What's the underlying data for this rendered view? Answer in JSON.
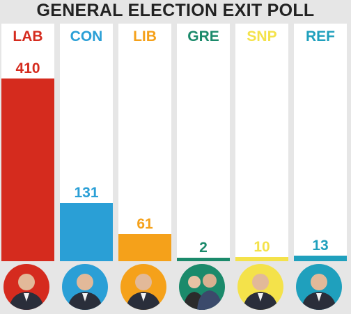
{
  "title": "GENERAL ELECTION EXIT POLL",
  "chart_data": {
    "type": "bar",
    "title": "GENERAL ELECTION EXIT POLL",
    "categories": [
      "LAB",
      "CON",
      "LIB",
      "GRE",
      "SNP",
      "REF"
    ],
    "values": [
      410,
      131,
      61,
      2,
      10,
      13
    ],
    "colors": [
      "#d52b1e",
      "#2a9fd6",
      "#f5a11a",
      "#1b8a6b",
      "#f4e24a",
      "#1fa0bd"
    ],
    "ylim": [
      0,
      410
    ],
    "grid": false,
    "legend": "none"
  },
  "avatars": [
    {
      "icon": "person-avatar-icon",
      "bg": "#d52b1e"
    },
    {
      "icon": "person-avatar-icon",
      "bg": "#2a9fd6"
    },
    {
      "icon": "person-avatar-icon",
      "bg": "#f5a11a"
    },
    {
      "icon": "two-people-avatar-icon",
      "bg": "#1b8a6b"
    },
    {
      "icon": "person-avatar-icon",
      "bg": "#f4e24a"
    },
    {
      "icon": "person-avatar-icon",
      "bg": "#1fa0bd"
    }
  ]
}
